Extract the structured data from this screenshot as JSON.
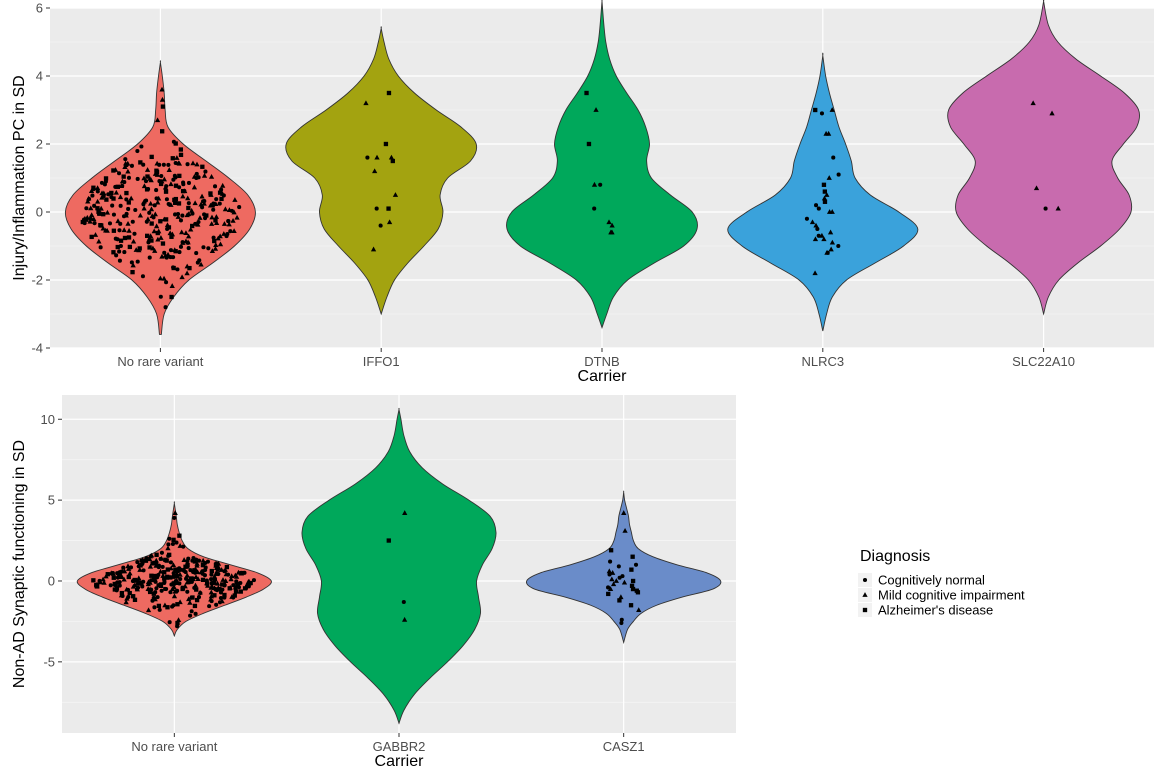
{
  "chart_data": [
    {
      "type": "violin",
      "xlabel": "Carrier",
      "ylabel": "Injury/Inflammation PC in SD",
      "ylim": [
        -4,
        6
      ],
      "yticks": [
        -4,
        -2,
        0,
        2,
        4,
        6
      ],
      "grid": true,
      "categories": [
        "No rare variant",
        "IFFO1",
        "DTNB",
        "NLRC3",
        "SLC22A10"
      ],
      "colors": [
        "#EE6A61",
        "#A3A310",
        "#00A85B",
        "#3AA2DB",
        "#C86BAE"
      ],
      "violins": [
        {
          "name": "No rare variant",
          "min": -3.6,
          "max": 4.4,
          "median": 0.0,
          "density": [
            [
              -3.6,
              0.01
            ],
            [
              -3.0,
              0.04
            ],
            [
              -2.5,
              0.14
            ],
            [
              -2.0,
              0.3
            ],
            [
              -1.5,
              0.55
            ],
            [
              -1.0,
              0.78
            ],
            [
              -0.5,
              0.94
            ],
            [
              0.0,
              1.0
            ],
            [
              0.5,
              0.92
            ],
            [
              1.0,
              0.72
            ],
            [
              1.5,
              0.48
            ],
            [
              2.0,
              0.24
            ],
            [
              2.5,
              0.08
            ],
            [
              3.0,
              0.05
            ],
            [
              3.5,
              0.04
            ],
            [
              4.0,
              0.02
            ],
            [
              4.4,
              0.0
            ]
          ]
        },
        {
          "name": "IFFO1",
          "min": -3.0,
          "max": 5.4,
          "median": 1.0,
          "density": [
            [
              -3.0,
              0.0
            ],
            [
              -2.5,
              0.06
            ],
            [
              -2.0,
              0.14
            ],
            [
              -1.5,
              0.28
            ],
            [
              -1.0,
              0.45
            ],
            [
              -0.5,
              0.6
            ],
            [
              0.0,
              0.65
            ],
            [
              0.5,
              0.62
            ],
            [
              1.0,
              0.7
            ],
            [
              1.5,
              0.94
            ],
            [
              2.0,
              1.0
            ],
            [
              2.5,
              0.84
            ],
            [
              3.0,
              0.58
            ],
            [
              3.5,
              0.35
            ],
            [
              4.0,
              0.18
            ],
            [
              4.5,
              0.08
            ],
            [
              5.0,
              0.03
            ],
            [
              5.4,
              0.0
            ]
          ]
        },
        {
          "name": "DTNB",
          "min": -3.4,
          "max": 6.2,
          "median": 0.3,
          "density": [
            [
              -3.4,
              0.0
            ],
            [
              -3.0,
              0.05
            ],
            [
              -2.5,
              0.12
            ],
            [
              -2.0,
              0.27
            ],
            [
              -1.5,
              0.55
            ],
            [
              -1.0,
              0.86
            ],
            [
              -0.5,
              1.0
            ],
            [
              0.0,
              0.95
            ],
            [
              0.5,
              0.72
            ],
            [
              1.0,
              0.52
            ],
            [
              1.5,
              0.47
            ],
            [
              2.0,
              0.5
            ],
            [
              2.5,
              0.46
            ],
            [
              3.0,
              0.38
            ],
            [
              3.5,
              0.26
            ],
            [
              4.0,
              0.15
            ],
            [
              4.5,
              0.08
            ],
            [
              5.0,
              0.04
            ],
            [
              5.5,
              0.02
            ],
            [
              6.2,
              0.0
            ]
          ]
        },
        {
          "name": "NLRC3",
          "min": -3.5,
          "max": 4.6,
          "median": 0.0,
          "density": [
            [
              -3.5,
              0.0
            ],
            [
              -3.0,
              0.04
            ],
            [
              -2.5,
              0.1
            ],
            [
              -2.0,
              0.25
            ],
            [
              -1.5,
              0.55
            ],
            [
              -1.0,
              0.85
            ],
            [
              -0.5,
              1.0
            ],
            [
              0.0,
              0.8
            ],
            [
              0.5,
              0.5
            ],
            [
              1.0,
              0.34
            ],
            [
              1.5,
              0.3
            ],
            [
              2.0,
              0.24
            ],
            [
              2.5,
              0.17
            ],
            [
              3.0,
              0.12
            ],
            [
              3.5,
              0.07
            ],
            [
              4.0,
              0.03
            ],
            [
              4.6,
              0.0
            ]
          ]
        },
        {
          "name": "SLC22A10",
          "min": -3.0,
          "max": 6.2,
          "median": 1.0,
          "density": [
            [
              -3.0,
              0.0
            ],
            [
              -2.5,
              0.05
            ],
            [
              -2.0,
              0.16
            ],
            [
              -1.5,
              0.36
            ],
            [
              -1.0,
              0.6
            ],
            [
              -0.5,
              0.8
            ],
            [
              0.0,
              0.92
            ],
            [
              0.5,
              0.9
            ],
            [
              1.0,
              0.78
            ],
            [
              1.5,
              0.72
            ],
            [
              2.0,
              0.84
            ],
            [
              2.5,
              0.98
            ],
            [
              3.0,
              1.0
            ],
            [
              3.5,
              0.85
            ],
            [
              4.0,
              0.6
            ],
            [
              4.5,
              0.34
            ],
            [
              5.0,
              0.15
            ],
            [
              5.5,
              0.05
            ],
            [
              6.2,
              0.0
            ]
          ]
        }
      ],
      "points": [
        {
          "group": "No rare variant",
          "n": 350,
          "sd": 0.95,
          "extra": [
            3.6,
            3.3,
            3.1,
            2.7,
            -2.8,
            -2.5
          ]
        },
        {
          "group": "IFFO1",
          "values": [
            3.5,
            3.2,
            2.0,
            1.6,
            1.6,
            1.5,
            1.6,
            1.2,
            0.5,
            0.1,
            0.1,
            -0.3,
            -0.4,
            -1.1
          ],
          "shapes": [
            "square",
            "triangle",
            "square",
            "triangle",
            "triangle",
            "square",
            "circle",
            "triangle",
            "triangle",
            "square",
            "circle",
            "triangle",
            "circle",
            "triangle"
          ]
        },
        {
          "group": "DTNB",
          "values": [
            3.5,
            3.0,
            2.0,
            0.8,
            0.8,
            0.1,
            -0.3,
            -0.4,
            -0.6,
            -0.6
          ],
          "shapes": [
            "square",
            "triangle",
            "square",
            "circle",
            "triangle",
            "circle",
            "triangle",
            "triangle",
            "triangle",
            "triangle"
          ]
        },
        {
          "group": "NLRC3",
          "values": [
            3.0,
            3.0,
            2.9,
            2.3,
            2.3,
            1.6,
            1.1,
            1.0,
            0.8,
            0.6,
            0.5,
            0.4,
            0.3,
            0.2,
            0.1,
            0.0,
            0.0,
            -0.2,
            -0.3,
            -0.4,
            -0.5,
            -0.6,
            -0.7,
            -0.7,
            -0.8,
            -0.8,
            -0.9,
            -1.0,
            -1.1,
            -1.2,
            -1.2,
            -1.8
          ],
          "shapes": []
        },
        {
          "group": "SLC22A10",
          "values": [
            3.2,
            2.9,
            0.7,
            0.1,
            0.1
          ],
          "shapes": [
            "triangle",
            "triangle",
            "triangle",
            "circle",
            "triangle"
          ]
        }
      ]
    },
    {
      "type": "violin",
      "xlabel": "Carrier",
      "ylabel": "Non-AD Synaptic functioning in SD",
      "ylim": [
        -9.4,
        11.5
      ],
      "yticks": [
        -5,
        0,
        5,
        10
      ],
      "grid": true,
      "categories": [
        "No rare variant",
        "GABBR2",
        "CASZ1"
      ],
      "colors": [
        "#EE6A61",
        "#00A85B",
        "#6A8CC9"
      ],
      "violins": [
        {
          "name": "No rare variant",
          "min": -3.4,
          "max": 4.8,
          "median": 0.0,
          "density": [
            [
              -3.4,
              0.0
            ],
            [
              -3.0,
              0.03
            ],
            [
              -2.5,
              0.12
            ],
            [
              -2.0,
              0.3
            ],
            [
              -1.5,
              0.52
            ],
            [
              -1.0,
              0.74
            ],
            [
              -0.5,
              0.92
            ],
            [
              0.0,
              1.0
            ],
            [
              0.5,
              0.86
            ],
            [
              1.0,
              0.58
            ],
            [
              1.5,
              0.3
            ],
            [
              2.0,
              0.14
            ],
            [
              2.5,
              0.08
            ],
            [
              3.0,
              0.05
            ],
            [
              3.5,
              0.03
            ],
            [
              4.0,
              0.02
            ],
            [
              4.8,
              0.0
            ]
          ]
        },
        {
          "name": "GABBR2",
          "min": -8.8,
          "max": 10.6,
          "median": 0.5,
          "density": [
            [
              -8.8,
              0.0
            ],
            [
              -8.0,
              0.05
            ],
            [
              -7.0,
              0.16
            ],
            [
              -6.0,
              0.32
            ],
            [
              -5.0,
              0.5
            ],
            [
              -4.0,
              0.66
            ],
            [
              -3.0,
              0.78
            ],
            [
              -2.0,
              0.84
            ],
            [
              -1.0,
              0.82
            ],
            [
              0.0,
              0.8
            ],
            [
              1.0,
              0.86
            ],
            [
              2.0,
              0.96
            ],
            [
              3.0,
              1.0
            ],
            [
              4.0,
              0.94
            ],
            [
              5.0,
              0.72
            ],
            [
              6.0,
              0.45
            ],
            [
              7.0,
              0.24
            ],
            [
              8.0,
              0.11
            ],
            [
              9.0,
              0.05
            ],
            [
              10.0,
              0.02
            ],
            [
              10.6,
              0.0
            ]
          ]
        },
        {
          "name": "CASZ1",
          "min": -3.8,
          "max": 5.5,
          "median": 0.0,
          "density": [
            [
              -3.8,
              0.0
            ],
            [
              -3.0,
              0.04
            ],
            [
              -2.5,
              0.1
            ],
            [
              -2.0,
              0.18
            ],
            [
              -1.5,
              0.34
            ],
            [
              -1.0,
              0.6
            ],
            [
              -0.5,
              0.92
            ],
            [
              0.0,
              1.0
            ],
            [
              0.5,
              0.86
            ],
            [
              1.0,
              0.55
            ],
            [
              1.5,
              0.3
            ],
            [
              2.0,
              0.15
            ],
            [
              2.5,
              0.1
            ],
            [
              3.0,
              0.08
            ],
            [
              3.5,
              0.06
            ],
            [
              4.0,
              0.05
            ],
            [
              4.5,
              0.03
            ],
            [
              5.0,
              0.01
            ],
            [
              5.5,
              0.0
            ]
          ]
        }
      ],
      "points": [
        {
          "group": "No rare variant",
          "n": 350,
          "sd": 0.85,
          "extra": [
            4.2,
            3.9,
            2.8,
            -2.6,
            -2.8
          ]
        },
        {
          "group": "GABBR2",
          "values": [
            4.2,
            2.5,
            -1.3,
            -2.4
          ],
          "shapes": [
            "triangle",
            "square",
            "circle",
            "triangle"
          ]
        },
        {
          "group": "CASZ1",
          "values": [
            4.2,
            3.1,
            1.9,
            1.5,
            1.2,
            1.0,
            0.9,
            0.7,
            0.6,
            0.5,
            0.4,
            0.3,
            0.2,
            0.1,
            0.0,
            0.0,
            -0.1,
            -0.2,
            -0.3,
            -0.4,
            -0.5,
            -0.5,
            -0.6,
            -0.7,
            -0.8,
            -1.0,
            -1.2,
            -1.5,
            -1.8,
            -2.4,
            -2.6
          ],
          "shapes": []
        }
      ]
    }
  ],
  "legend": {
    "title": "Diagnosis",
    "items": [
      {
        "label": "Cognitively normal",
        "shape": "circle"
      },
      {
        "label": "Mild cognitive impairment",
        "shape": "triangle"
      },
      {
        "label": "Alzheimer's disease",
        "shape": "square"
      }
    ]
  }
}
